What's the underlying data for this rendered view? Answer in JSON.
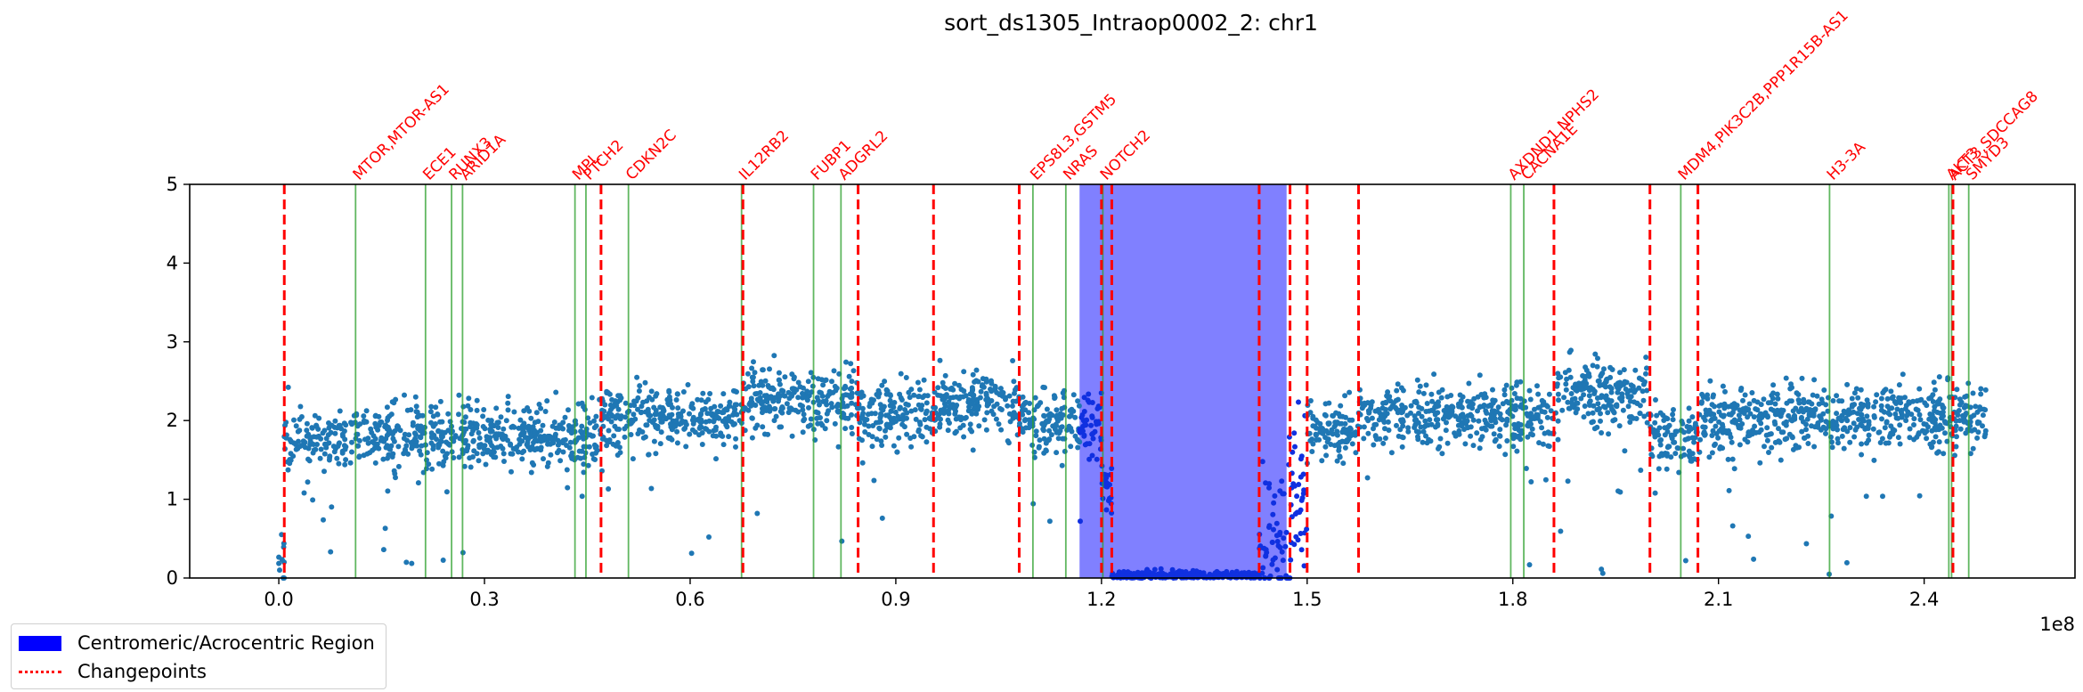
{
  "chart_data": {
    "type": "scatter",
    "title": "sort_ds1305_Intraop0002_2: chr1",
    "xlabel": "",
    "ylabel": "",
    "x_offset_label": "1e8",
    "xlim": [
      -13000000,
      262000000
    ],
    "ylim": [
      0,
      5
    ],
    "x_ticks": [
      {
        "value": 0,
        "label": "0.0"
      },
      {
        "value": 30000000,
        "label": "0.3"
      },
      {
        "value": 60000000,
        "label": "0.6"
      },
      {
        "value": 90000000,
        "label": "0.9"
      },
      {
        "value": 120000000,
        "label": "1.2"
      },
      {
        "value": 150000000,
        "label": "1.5"
      },
      {
        "value": 180000000,
        "label": "1.8"
      },
      {
        "value": 210000000,
        "label": "2.1"
      },
      {
        "value": 240000000,
        "label": "2.4"
      }
    ],
    "y_ticks": [
      {
        "value": 0,
        "label": "0"
      },
      {
        "value": 1,
        "label": "1"
      },
      {
        "value": 2,
        "label": "2"
      },
      {
        "value": 3,
        "label": "3"
      },
      {
        "value": 4,
        "label": "4"
      },
      {
        "value": 5,
        "label": "5"
      }
    ],
    "grid": false,
    "legend_position": "bottom-left, outside plot",
    "colors": {
      "points": "#1f77b4",
      "region_points": "#1030e0",
      "centromere": "#8080ff",
      "changepoint": "#ff0000",
      "gene_line": "#2ca02c",
      "gene_label": "#ff0000"
    },
    "centromeric_region": {
      "start": 116800000,
      "end": 147000000
    },
    "changepoints": [
      800000,
      47000000,
      67700000,
      84500000,
      95500000,
      108000000,
      120000000,
      121500000,
      143000000,
      147500000,
      150000000,
      157500000,
      186000000,
      200000000,
      207000000,
      244200000
    ],
    "genes": [
      {
        "pos": 11200000,
        "label": "MTOR,MTOR-AS1"
      },
      {
        "pos": 21400000,
        "label": "ECE1"
      },
      {
        "pos": 25200000,
        "label": "RUNX3"
      },
      {
        "pos": 26800000,
        "label": "ARID1A"
      },
      {
        "pos": 43200000,
        "label": "MPL"
      },
      {
        "pos": 44800000,
        "label": "PTCH2"
      },
      {
        "pos": 51000000,
        "label": "CDKN2C"
      },
      {
        "pos": 67500000,
        "label": "IL12RB2"
      },
      {
        "pos": 78000000,
        "label": "FUBP1"
      },
      {
        "pos": 82000000,
        "label": "ADGRL2"
      },
      {
        "pos": 110000000,
        "label": "EPS8L3,GSTM5"
      },
      {
        "pos": 114800000,
        "label": "NRAS"
      },
      {
        "pos": 120200000,
        "label": "NOTCH2"
      },
      {
        "pos": 179700000,
        "label": "AXDND1,NPHS2"
      },
      {
        "pos": 181600000,
        "label": "CACNA1E"
      },
      {
        "pos": 204500000,
        "label": "MDM4,PIK3C2B,PPP1R15B-AS1"
      },
      {
        "pos": 226200000,
        "label": "H3-3A"
      },
      {
        "pos": 243600000,
        "label": "AKT3"
      },
      {
        "pos": 244000000,
        "label": "ACT3,SDCCAG8"
      },
      {
        "pos": 246500000,
        "label": "SMYD3"
      }
    ],
    "segments": [
      {
        "start": 0,
        "end": 800000,
        "mean": 0.1
      },
      {
        "start": 800000,
        "end": 47000000,
        "mean": 1.8
      },
      {
        "start": 47000000,
        "end": 67700000,
        "mean": 2.05
      },
      {
        "start": 67700000,
        "end": 84500000,
        "mean": 2.28
      },
      {
        "start": 84500000,
        "end": 95500000,
        "mean": 2.05
      },
      {
        "start": 95500000,
        "end": 108000000,
        "mean": 2.22
      },
      {
        "start": 108000000,
        "end": 120000000,
        "mean": 1.95
      },
      {
        "start": 120000000,
        "end": 121500000,
        "mean": 1.2
      },
      {
        "start": 121500000,
        "end": 143000000,
        "mean": 0.03
      },
      {
        "start": 143000000,
        "end": 147500000,
        "mean": 0.4
      },
      {
        "start": 147500000,
        "end": 150000000,
        "mean": 1.0
      },
      {
        "start": 150000000,
        "end": 157500000,
        "mean": 1.85
      },
      {
        "start": 157500000,
        "end": 186000000,
        "mean": 2.05
      },
      {
        "start": 186000000,
        "end": 200000000,
        "mean": 2.32
      },
      {
        "start": 200000000,
        "end": 207000000,
        "mean": 1.8
      },
      {
        "start": 207000000,
        "end": 244200000,
        "mean": 2.02
      },
      {
        "start": 244200000,
        "end": 249000000,
        "mean": 2.05
      }
    ]
  },
  "legend": {
    "items": [
      {
        "label": "Centromeric/Acrocentric Region"
      },
      {
        "label": "Changepoints"
      }
    ]
  }
}
